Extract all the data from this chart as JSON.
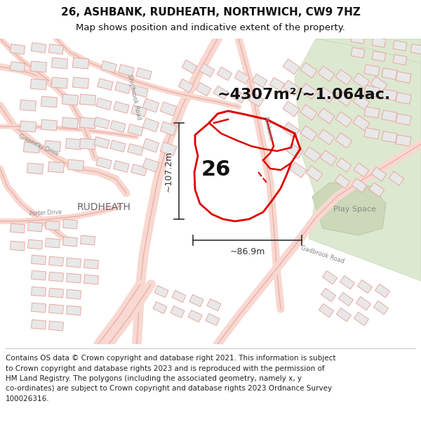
{
  "title_line1": "26, ASHBANK, RUDHEATH, NORTHWICH, CW9 7HZ",
  "title_line2": "Map shows position and indicative extent of the property.",
  "area_text": "~4307m²/~1.064ac.",
  "width_text": "~86.9m",
  "height_text": "~107.2m",
  "label_26": "26",
  "rudheath_label": "RUDHEATH",
  "play_space_label": "Play Space",
  "footer_lines": [
    "Contains OS data © Crown copyright and database right 2021. This information is subject",
    "to Crown copyright and database rights 2023 and is reproduced with the permission of",
    "HM Land Registry. The polygons (including the associated geometry, namely x, y",
    "co-ordinates) are subject to Crown copyright and database rights 2023 Ordnance Survey",
    "100026316."
  ],
  "map_bg": "#ffffff",
  "footer_bg": "#ffffff",
  "title_bg": "#ffffff",
  "building_fill": "#e8e8e8",
  "building_edge": "#e8a8a0",
  "road_edge": "#e8a8a0",
  "road_fill": "#f8d8d0",
  "green_fill": "#dde8d0",
  "green_edge": "#c8d8b8",
  "plot_color": "#dd0000",
  "dim_color": "#333333",
  "text_dark": "#111111",
  "text_mid": "#555555",
  "text_light": "#888888",
  "title_fontsize": 11,
  "subtitle_fontsize": 9.5,
  "footer_fontsize": 7.5,
  "area_fontsize": 16,
  "label26_fontsize": 22,
  "rudheath_fontsize": 10,
  "playspace_fontsize": 8
}
